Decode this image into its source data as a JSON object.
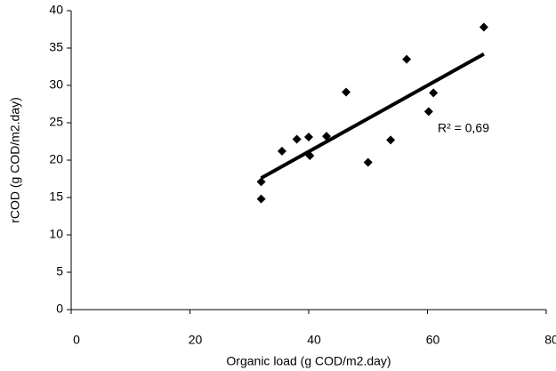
{
  "chart_data": {
    "type": "scatter",
    "x_label": "Organic load (g COD/m2.day)",
    "y_label": "rCOD (g COD/m2.day)",
    "annotation": "R² = 0,69",
    "series": [
      {
        "color": "#000000",
        "x": [
          32,
          32,
          35.5,
          38,
          40,
          40.2,
          43,
          46.3,
          50,
          53.8,
          56.5,
          60.2,
          61,
          69.5
        ],
        "values": [
          17.1,
          14.8,
          21.2,
          22.8,
          23.1,
          20.6,
          23.2,
          29.1,
          19.7,
          22.7,
          33.5,
          26.5,
          29,
          37.8
        ]
      }
    ],
    "trendline": {
      "color": "#000000",
      "x": [
        32,
        69.5
      ],
      "values": [
        17.6,
        34.2
      ]
    },
    "xlim": [
      0,
      80
    ],
    "xticks": [
      0,
      20,
      40,
      60,
      80
    ],
    "ylim": [
      0,
      40
    ],
    "yticks": [
      0,
      5,
      10,
      15,
      20,
      25,
      30,
      35,
      40
    ],
    "grid": false
  }
}
